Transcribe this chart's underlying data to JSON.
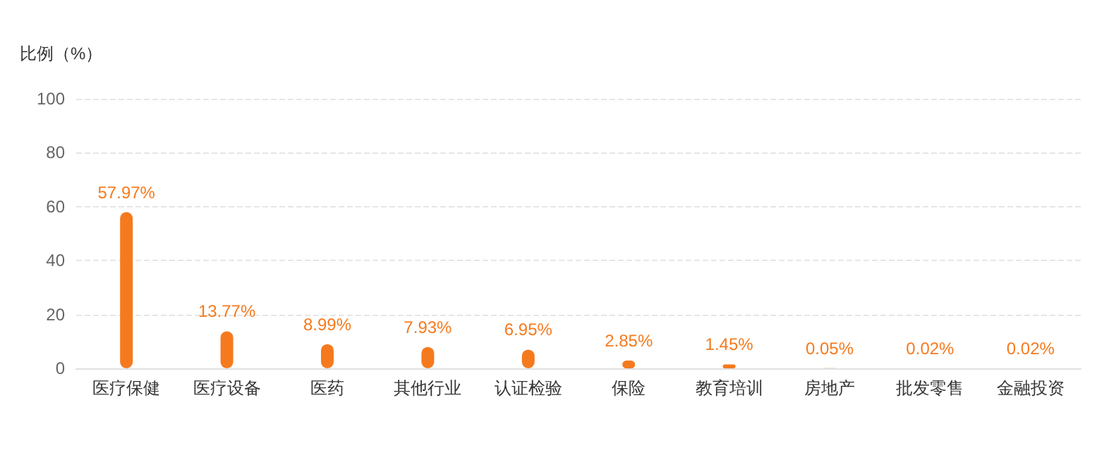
{
  "chart_data": {
    "type": "bar",
    "ylabel": "比例（%）",
    "categories": [
      "医疗保健",
      "医疗设备",
      "医药",
      "其他行业",
      "认证检验",
      "保险",
      "教育培训",
      "房地产",
      "批发零售",
      "金融投资"
    ],
    "values": [
      57.97,
      13.77,
      8.99,
      7.93,
      6.95,
      2.85,
      1.45,
      0.05,
      0.02,
      0.02
    ],
    "value_labels": [
      "57.97%",
      "13.77%",
      "8.99%",
      "7.93%",
      "6.95%",
      "2.85%",
      "1.45%",
      "0.05%",
      "0.02%",
      "0.02%"
    ],
    "color": "#f57a1e",
    "ylim": [
      0,
      100
    ],
    "yticks": [
      0,
      20,
      40,
      60,
      80,
      100
    ],
    "grid": "y"
  }
}
